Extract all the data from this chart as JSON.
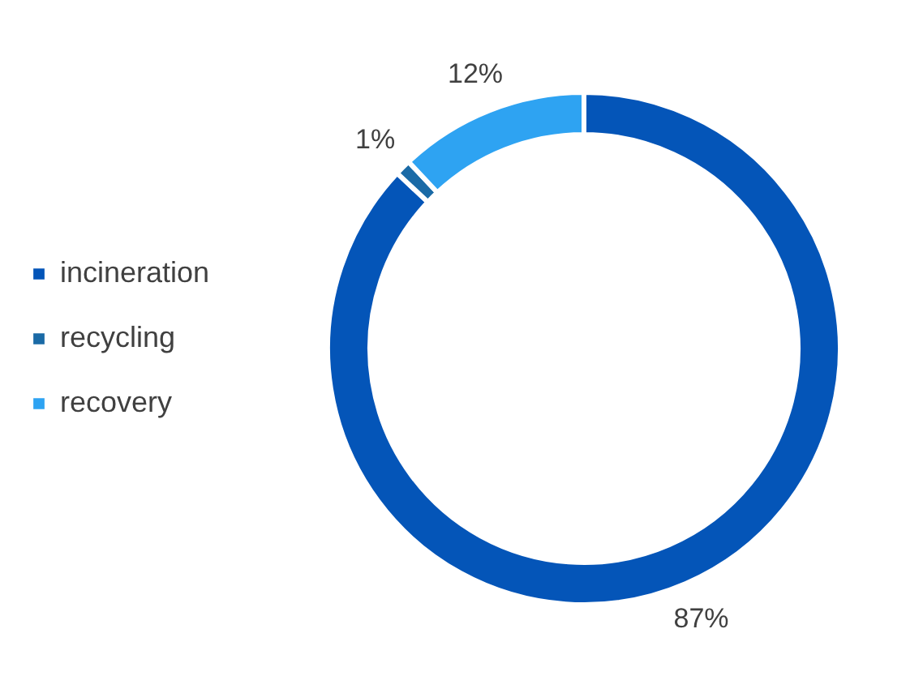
{
  "chart_data": {
    "type": "donut",
    "categories": [
      "incineration",
      "recycling",
      "recovery"
    ],
    "values": [
      87,
      1,
      12
    ],
    "colors": [
      "#0455b8",
      "#1a6aa6",
      "#2ea3f2"
    ],
    "value_labels": [
      "87%",
      "1%",
      "12%"
    ],
    "legend": "left"
  }
}
